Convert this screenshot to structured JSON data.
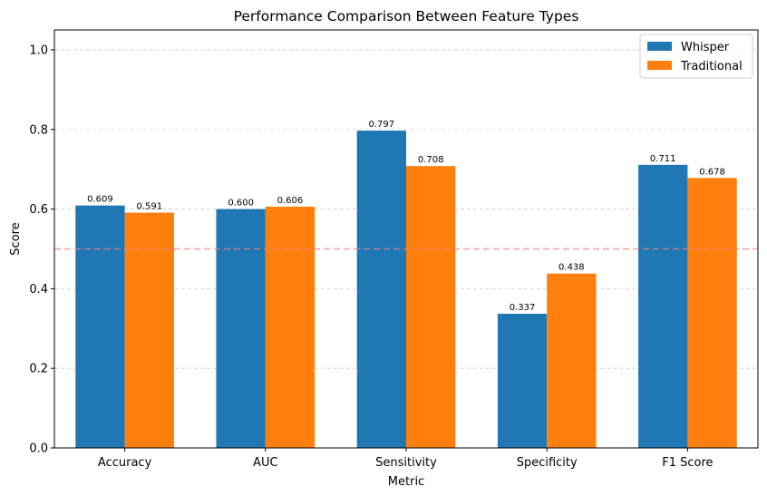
{
  "chart_data": {
    "type": "bar",
    "title": "Performance Comparison Between Feature Types",
    "xlabel": "Metric",
    "ylabel": "Score",
    "ylim": [
      0,
      1.05
    ],
    "yticks": [
      "0.0",
      "0.2",
      "0.4",
      "0.6",
      "0.8",
      "1.0"
    ],
    "ytick_values": [
      0,
      0.2,
      0.4,
      0.6,
      0.8,
      1.0
    ],
    "categories": [
      "Accuracy",
      "AUC",
      "Sensitivity",
      "Specificity",
      "F1 Score"
    ],
    "series": [
      {
        "name": "Whisper",
        "color": "#1f77b4",
        "values": [
          0.609,
          0.6,
          0.797,
          0.337,
          0.711
        ],
        "labels": [
          "0.609",
          "0.600",
          "0.797",
          "0.337",
          "0.711"
        ]
      },
      {
        "name": "Traditional",
        "color": "#ff7f0e",
        "values": [
          0.591,
          0.606,
          0.708,
          0.438,
          0.678
        ],
        "labels": [
          "0.591",
          "0.606",
          "0.708",
          "0.438",
          "0.678"
        ]
      }
    ],
    "reference_line": {
      "value": 0.5,
      "color": "#f08080",
      "style": "dashed"
    },
    "grid": "y-dashed",
    "legend_position": "top-right"
  }
}
